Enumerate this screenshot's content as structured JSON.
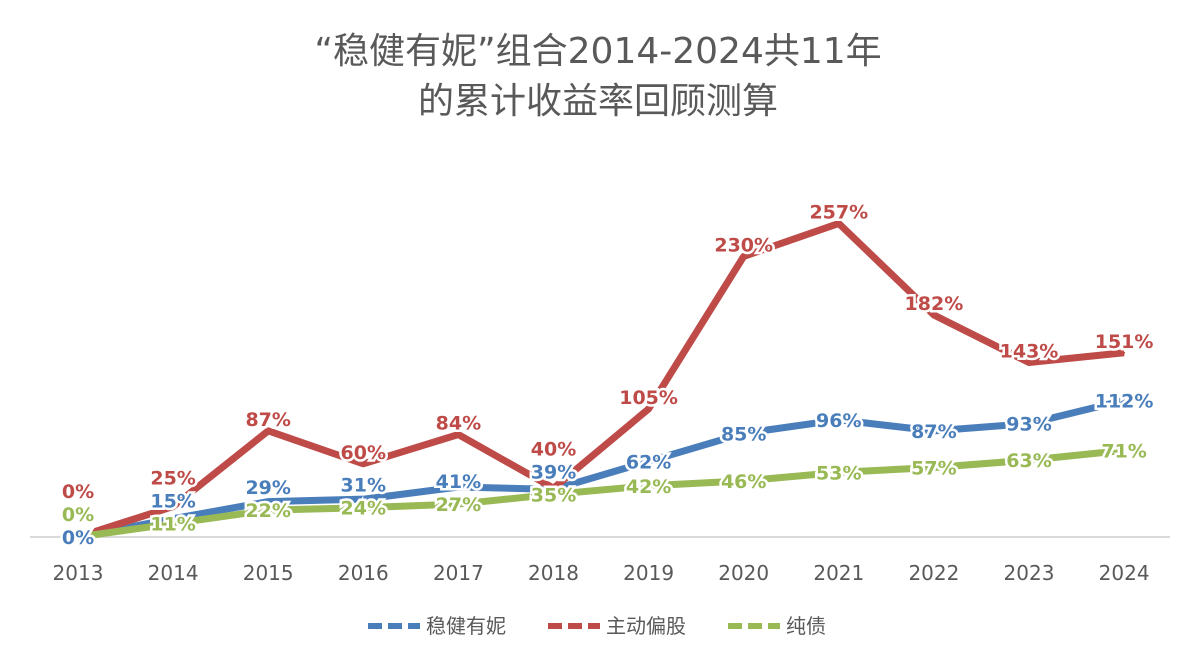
{
  "chart_data": {
    "type": "line",
    "title_line1": "“稳健有妮”组合2014-2024共11年",
    "title_line2": "的累计收益率回顾测算",
    "categories": [
      "2013",
      "2014",
      "2015",
      "2016",
      "2017",
      "2018",
      "2019",
      "2020",
      "2021",
      "2022",
      "2023",
      "2024"
    ],
    "ylim": [
      0,
      300
    ],
    "unit": "%",
    "legend_position": "bottom",
    "series": [
      {
        "name": "稳健有妮",
        "color": "#4a7ebb",
        "values": [
          0,
          15,
          29,
          31,
          41,
          39,
          62,
          85,
          96,
          87,
          93,
          112
        ]
      },
      {
        "name": "主动偏股",
        "color": "#be4b48",
        "values": [
          0,
          25,
          87,
          60,
          84,
          40,
          105,
          230,
          257,
          182,
          143,
          151
        ]
      },
      {
        "name": "纯债",
        "color": "#98b954",
        "values": [
          0,
          11,
          22,
          24,
          27,
          35,
          42,
          46,
          53,
          57,
          63,
          71
        ]
      }
    ]
  }
}
